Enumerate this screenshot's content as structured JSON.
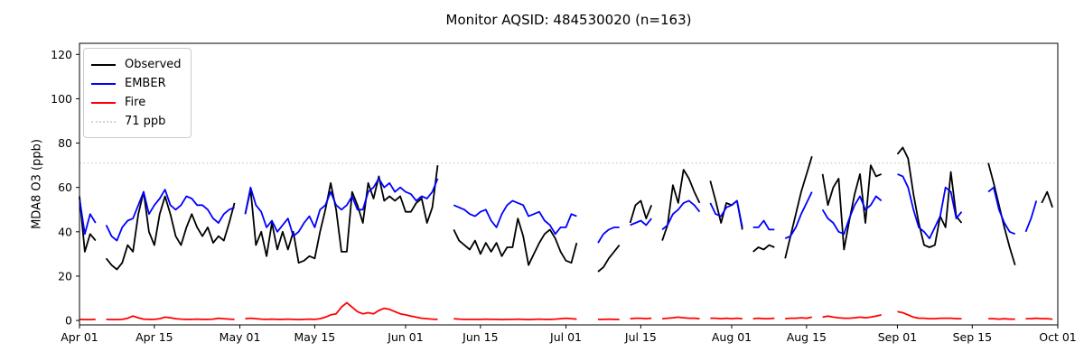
{
  "figure": {
    "title": "Monitor AQSID: 484530020 (n=163)",
    "ylabel": "MDA8 O3 (ppb)",
    "background": "#ffffff",
    "frame_color": "#000000"
  },
  "legend": {
    "position": "upper left",
    "items": [
      {
        "label": "Observed",
        "color": "#000000",
        "style": "solid"
      },
      {
        "label": "EMBER",
        "color": "#0000ff",
        "style": "solid"
      },
      {
        "label": "Fire",
        "color": "#ff0000",
        "style": "solid"
      },
      {
        "label": "71 ppb",
        "color": "#d3d3d3",
        "style": "dotted"
      }
    ]
  },
  "chart_data": {
    "type": "line",
    "title": "Monitor AQSID: 484530020 (n=163)",
    "xlabel": "",
    "ylabel": "MDA8 O3 (ppb)",
    "grid": false,
    "legend_position": "upper left",
    "ylim": [
      -2,
      125
    ],
    "yticks": [
      0,
      20,
      40,
      60,
      80,
      100,
      120
    ],
    "x_unit": "days since Apr 01",
    "x_range_days": [
      0,
      183
    ],
    "xtick_days": [
      0,
      14,
      30,
      44,
      61,
      75,
      91,
      105,
      122,
      136,
      153,
      167,
      183
    ],
    "xtick_labels": [
      "Apr 01",
      "Apr 15",
      "May 01",
      "May 15",
      "Jun 01",
      "Jun 15",
      "Jul 01",
      "Jul 15",
      "Aug 01",
      "Aug 15",
      "Sep 01",
      "Sep 15",
      "Oct 01"
    ],
    "threshold": {
      "label": "71 ppb",
      "value": 71,
      "color": "#d3d3d3",
      "linestyle": "dotted"
    },
    "series": [
      {
        "name": "Observed",
        "color": "#000000",
        "values": [
          56,
          31,
          39,
          36,
          null,
          28,
          25,
          23,
          26,
          34,
          31,
          48,
          58,
          40,
          34,
          48,
          56,
          48,
          38,
          34,
          42,
          48,
          42,
          38,
          42,
          35,
          38,
          36,
          44,
          53,
          null,
          48,
          59,
          34,
          40,
          29,
          44,
          32,
          40,
          32,
          40,
          26,
          27,
          29,
          28,
          40,
          50,
          62,
          50,
          31,
          31,
          58,
          52,
          44,
          62,
          55,
          65,
          54,
          56,
          54,
          56,
          49,
          49,
          53,
          55,
          44,
          51,
          70,
          null,
          null,
          41,
          36,
          34,
          32,
          36,
          30,
          35,
          31,
          35,
          29,
          33,
          33,
          46,
          38,
          25,
          30,
          35,
          39,
          41,
          37,
          31,
          27,
          26,
          35,
          null,
          null,
          null,
          22,
          24,
          28,
          31,
          34,
          null,
          44,
          52,
          54,
          46,
          52,
          null,
          36,
          43,
          61,
          53,
          68,
          64,
          58,
          53,
          null,
          63,
          54,
          44,
          53,
          52,
          54,
          41,
          null,
          31,
          33,
          32,
          34,
          33,
          null,
          28,
          38,
          48,
          58,
          66,
          74,
          null,
          66,
          52,
          60,
          64,
          32,
          45,
          57,
          66,
          44,
          70,
          65,
          66,
          null,
          null,
          75,
          78,
          73,
          57,
          44,
          34,
          33,
          34,
          47,
          42,
          67,
          47,
          44,
          null,
          null,
          null,
          null,
          71,
          62,
          52,
          42,
          33,
          25,
          null,
          null,
          null,
          null,
          53,
          58,
          51,
          null
        ]
      },
      {
        "name": "EMBER",
        "color": "#0000ff",
        "values": [
          55,
          39,
          48,
          44,
          null,
          43,
          38,
          36,
          42,
          45,
          46,
          52,
          58,
          48,
          52,
          55,
          59,
          52,
          50,
          52,
          56,
          55,
          52,
          52,
          50,
          46,
          44,
          48,
          50,
          51,
          null,
          48,
          60,
          52,
          49,
          42,
          45,
          40,
          43,
          46,
          38,
          40,
          44,
          47,
          42,
          50,
          52,
          58,
          52,
          50,
          52,
          56,
          50,
          50,
          58,
          60,
          64,
          60,
          62,
          58,
          60,
          58,
          57,
          54,
          56,
          55,
          58,
          64,
          null,
          null,
          52,
          51,
          50,
          48,
          47,
          49,
          50,
          45,
          42,
          48,
          52,
          54,
          53,
          52,
          47,
          48,
          49,
          45,
          43,
          39,
          42,
          42,
          48,
          47,
          null,
          null,
          null,
          35,
          39,
          41,
          42,
          42,
          null,
          43,
          44,
          45,
          43,
          46,
          null,
          41,
          43,
          48,
          50,
          53,
          54,
          52,
          49,
          null,
          53,
          48,
          47,
          51,
          52,
          54,
          42,
          null,
          42,
          42,
          45,
          41,
          41,
          null,
          37,
          38,
          42,
          48,
          53,
          58,
          null,
          50,
          46,
          44,
          40,
          39,
          46,
          52,
          56,
          50,
          52,
          56,
          54,
          null,
          null,
          66,
          65,
          60,
          50,
          42,
          40,
          37,
          42,
          47,
          60,
          58,
          46,
          49,
          null,
          null,
          null,
          null,
          58,
          60,
          50,
          44,
          40,
          39,
          null,
          40,
          46,
          54,
          null,
          null,
          null,
          null
        ]
      },
      {
        "name": "Fire",
        "color": "#ff0000",
        "values": [
          0.5,
          0.4,
          0.4,
          0.5,
          null,
          0.5,
          0.4,
          0.4,
          0.5,
          1,
          2,
          1.2,
          0.6,
          0.5,
          0.5,
          0.8,
          1.5,
          1.2,
          0.8,
          0.6,
          0.5,
          0.5,
          0.6,
          0.5,
          0.5,
          0.6,
          1,
          0.8,
          0.6,
          0.5,
          null,
          0.8,
          1,
          0.8,
          0.6,
          0.5,
          0.6,
          0.5,
          0.5,
          0.6,
          0.5,
          0.4,
          0.5,
          0.6,
          0.5,
          0.8,
          1.5,
          2.5,
          3,
          6,
          8,
          6,
          4,
          3,
          3.5,
          3,
          4.5,
          5.5,
          5,
          4,
          3,
          2.5,
          2,
          1.5,
          1,
          0.8,
          0.6,
          0.5,
          null,
          null,
          0.8,
          0.6,
          0.5,
          0.5,
          0.5,
          0.5,
          0.6,
          0.5,
          0.5,
          0.4,
          0.5,
          0.5,
          0.6,
          0.5,
          0.4,
          0.5,
          0.6,
          0.5,
          0.5,
          0.6,
          0.8,
          1,
          0.8,
          0.6,
          null,
          null,
          null,
          0.5,
          0.5,
          0.6,
          0.5,
          0.5,
          null,
          0.8,
          1,
          1,
          0.8,
          1,
          null,
          0.8,
          1,
          1.2,
          1.5,
          1.2,
          1,
          1,
          0.8,
          null,
          1,
          1,
          0.8,
          1,
          0.8,
          1,
          0.8,
          null,
          0.8,
          1,
          0.8,
          0.8,
          1,
          null,
          0.8,
          1,
          1,
          1.2,
          1,
          1.5,
          null,
          1.5,
          2,
          1.5,
          1.2,
          1,
          1,
          1.2,
          1.5,
          1.2,
          1.5,
          2,
          2.5,
          null,
          null,
          4,
          3.5,
          2.5,
          1.5,
          1,
          1,
          0.8,
          0.8,
          1,
          1,
          1,
          0.8,
          0.8,
          null,
          null,
          null,
          null,
          0.8,
          0.8,
          0.6,
          0.8,
          0.6,
          0.6,
          null,
          0.8,
          0.8,
          1,
          0.8,
          0.8,
          0.6,
          null
        ]
      }
    ]
  }
}
